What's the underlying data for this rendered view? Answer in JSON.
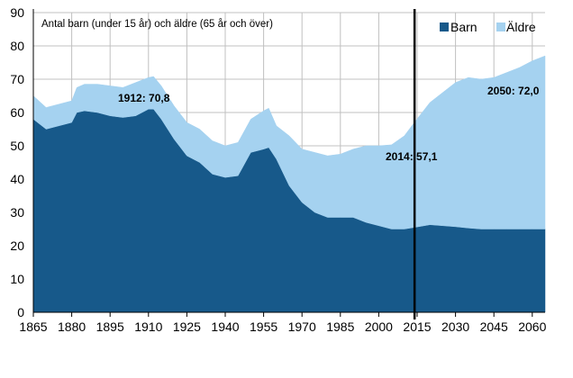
{
  "chart_data": {
    "type": "area",
    "stacked": true,
    "title": "Antal barn (under 15 år) och äldre (65 år och över)",
    "xlabel": "",
    "ylabel": "",
    "xlim": [
      1865,
      2065
    ],
    "ylim": [
      0,
      90
    ],
    "grid": true,
    "legend_placement": "top-right",
    "x_ticks": [
      "1865",
      "1880",
      "1895",
      "1910",
      "1925",
      "1940",
      "1955",
      "1970",
      "1985",
      "2000",
      "2015",
      "2030",
      "2045",
      "2060"
    ],
    "y_ticks": [
      "0",
      "10",
      "20",
      "30",
      "40",
      "50",
      "60",
      "70",
      "80",
      "90"
    ],
    "x": [
      1865,
      1870,
      1875,
      1880,
      1882,
      1885,
      1890,
      1895,
      1900,
      1905,
      1910,
      1912,
      1915,
      1920,
      1925,
      1930,
      1935,
      1940,
      1945,
      1950,
      1955,
      1957,
      1960,
      1965,
      1970,
      1975,
      1980,
      1985,
      1990,
      1995,
      2000,
      2005,
      2010,
      2014,
      2020,
      2025,
      2030,
      2035,
      2040,
      2045,
      2050,
      2055,
      2060,
      2065
    ],
    "series": [
      {
        "name": "Barn",
        "color": "#17598a",
        "values": [
          58,
          55,
          56,
          57,
          60,
          60.5,
          60,
          59,
          58.5,
          59,
          61,
          61,
          58,
          52,
          47,
          45,
          41.5,
          40.5,
          41,
          48,
          49,
          49.5,
          46,
          38,
          33,
          30,
          28.5,
          28.5,
          28.5,
          27,
          26,
          25,
          25,
          25.5,
          26.3,
          26,
          25.7,
          25.3,
          25,
          25,
          25,
          25,
          25,
          25
        ]
      },
      {
        "name": "Äldre",
        "color": "#a5d2f0",
        "values": [
          7,
          6.5,
          6.5,
          6.5,
          7.5,
          8,
          8.5,
          9,
          9,
          10,
          9.5,
          9.8,
          10,
          10,
          10,
          10,
          10,
          9.5,
          10,
          10,
          11.5,
          11.8,
          10,
          15,
          16,
          18,
          18.5,
          19,
          20.5,
          23,
          24,
          25.3,
          28,
          31.6,
          36.7,
          40,
          43.3,
          45.2,
          45,
          45.5,
          47,
          48.5,
          50.5,
          52
        ]
      }
    ],
    "marker_line": {
      "x": 2014,
      "color": "#000000"
    },
    "annotations": [
      {
        "text": "1912: 70,8",
        "x": 1912,
        "y": 70.8
      },
      {
        "text": "2014: 57,1",
        "x": 2014,
        "y": 57.1
      },
      {
        "text": "2050: 72,0",
        "x": 2050,
        "y": 72.0
      }
    ]
  }
}
